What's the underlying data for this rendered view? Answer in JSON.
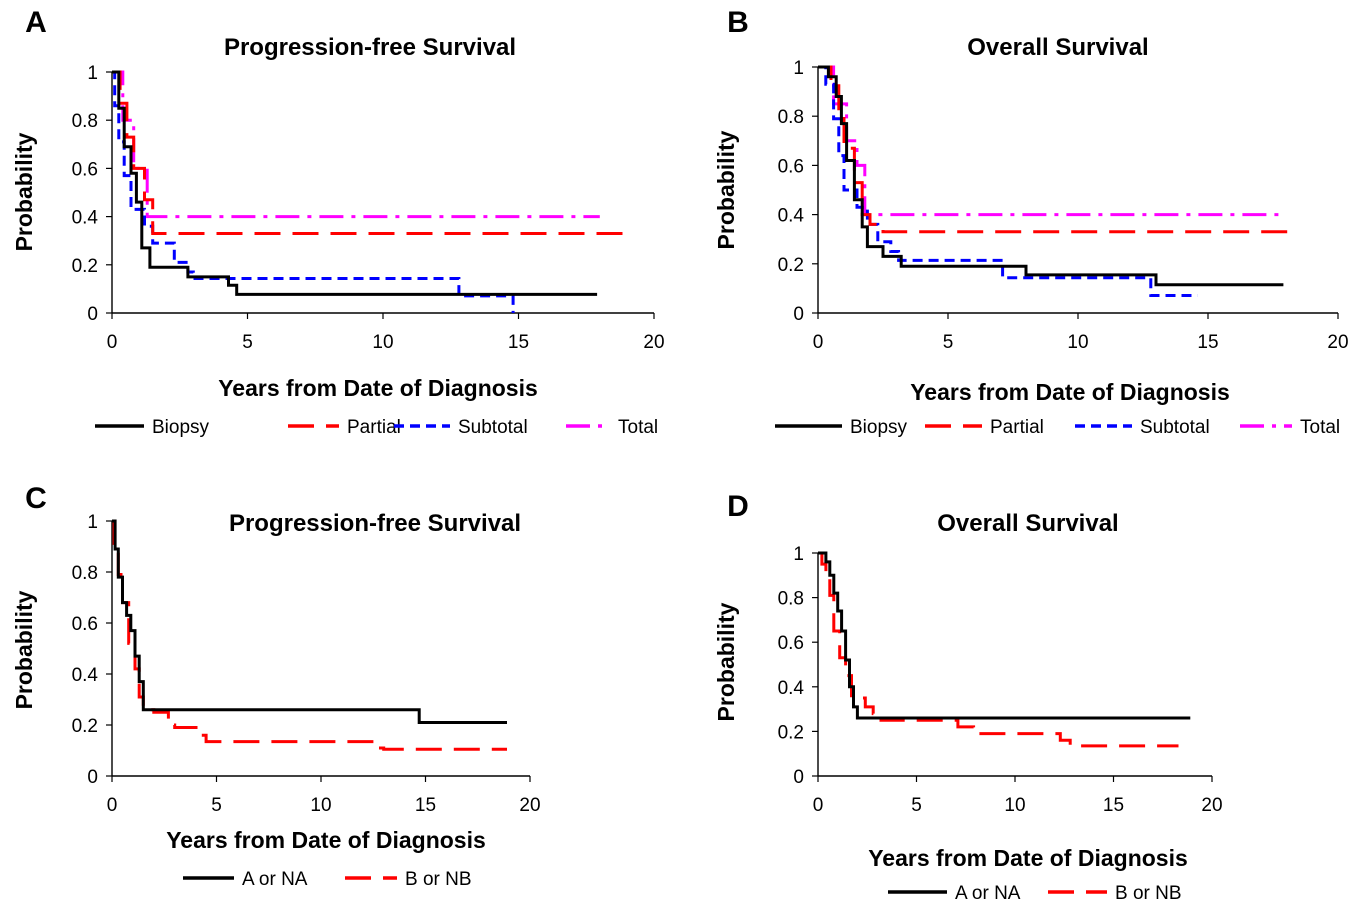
{
  "chart_data": [
    {
      "panel": "A",
      "type": "line",
      "title": "Progression-free Survival",
      "xlabel": "Years from Date of Diagnosis",
      "ylabel": "Probability",
      "xlim": [
        0,
        20
      ],
      "ylim": [
        0,
        1
      ],
      "xticks": [
        "0",
        "5",
        "10",
        "15",
        "20"
      ],
      "yticks": [
        "0",
        "0.2",
        "0.4",
        "0.6",
        "0.8",
        "1"
      ],
      "legend_position": "bottom",
      "series": [
        {
          "name": "Biopsy",
          "color": "#000000",
          "dash": "solid",
          "x": [
            0,
            0.25,
            0.25,
            0.45,
            0.45,
            0.7,
            0.7,
            0.9,
            0.9,
            1.1,
            1.1,
            1.4,
            1.4,
            2.8,
            2.8,
            4.3,
            4.3,
            4.6,
            4.6,
            17.9
          ],
          "y": [
            1,
            1,
            0.85,
            0.85,
            0.69,
            0.69,
            0.58,
            0.58,
            0.46,
            0.46,
            0.27,
            0.27,
            0.19,
            0.19,
            0.15,
            0.15,
            0.115,
            0.115,
            0.077,
            0.077
          ]
        },
        {
          "name": "Partial",
          "color": "#ff0000",
          "dash": "long-dash",
          "x": [
            0,
            0.3,
            0.3,
            0.55,
            0.55,
            0.8,
            0.8,
            1.2,
            1.2,
            1.5,
            1.5,
            19.0
          ],
          "y": [
            1,
            1,
            0.87,
            0.87,
            0.73,
            0.73,
            0.6,
            0.6,
            0.47,
            0.47,
            0.33,
            0.33
          ]
        },
        {
          "name": "Subtotal",
          "color": "#0000ff",
          "dash": "dash",
          "x": [
            0,
            0.1,
            0.1,
            0.25,
            0.25,
            0.45,
            0.45,
            0.7,
            0.7,
            1.2,
            1.2,
            1.5,
            1.5,
            2.3,
            2.3,
            2.8,
            2.8,
            3.0,
            3.0,
            12.8,
            12.8,
            14.8,
            14.8
          ],
          "y": [
            1,
            1,
            0.86,
            0.86,
            0.71,
            0.71,
            0.57,
            0.57,
            0.43,
            0.43,
            0.36,
            0.36,
            0.29,
            0.29,
            0.21,
            0.21,
            0.17,
            0.17,
            0.143,
            0.143,
            0.071,
            0.071,
            0
          ]
        },
        {
          "name": "Total",
          "color": "#ff00ff",
          "dash": "dash-dot",
          "x": [
            0,
            0.4,
            0.4,
            0.8,
            0.8,
            1.1,
            1.1,
            1.3,
            1.3,
            18.0
          ],
          "y": [
            1,
            1,
            0.8,
            0.8,
            0.6,
            0.6,
            0.6,
            0.6,
            0.4,
            0.4
          ]
        }
      ]
    },
    {
      "panel": "B",
      "type": "line",
      "title": "Overall Survival",
      "xlabel": "Years from Date of Diagnosis",
      "ylabel": "Probability",
      "xlim": [
        0,
        20
      ],
      "ylim": [
        0,
        1
      ],
      "xticks": [
        "0",
        "5",
        "10",
        "15",
        "20"
      ],
      "yticks": [
        "0",
        "0.2",
        "0.4",
        "0.6",
        "0.8",
        "1"
      ],
      "legend_position": "bottom",
      "series": [
        {
          "name": "Biopsy",
          "color": "#000000",
          "dash": "solid",
          "x": [
            0,
            0.4,
            0.4,
            0.7,
            0.7,
            0.9,
            0.9,
            1.1,
            1.1,
            1.4,
            1.4,
            1.7,
            1.7,
            1.9,
            1.9,
            2.5,
            2.5,
            3.2,
            3.2,
            8.0,
            8.0,
            13.0,
            13.0,
            17.9
          ],
          "y": [
            1,
            1,
            0.96,
            0.96,
            0.88,
            0.88,
            0.77,
            0.77,
            0.62,
            0.62,
            0.46,
            0.46,
            0.35,
            0.35,
            0.27,
            0.27,
            0.23,
            0.23,
            0.19,
            0.19,
            0.155,
            0.155,
            0.115,
            0.115
          ]
        },
        {
          "name": "Partial",
          "color": "#ff0000",
          "dash": "long-dash",
          "x": [
            0,
            0.5,
            0.5,
            0.8,
            0.8,
            1.0,
            1.0,
            1.4,
            1.4,
            1.7,
            1.7,
            2.0,
            2.0,
            2.5,
            2.5,
            18.4
          ],
          "y": [
            1,
            1,
            0.93,
            0.93,
            0.8,
            0.8,
            0.67,
            0.67,
            0.53,
            0.53,
            0.4,
            0.4,
            0.36,
            0.36,
            0.33,
            0.33
          ]
        },
        {
          "name": "Subtotal",
          "color": "#0000ff",
          "dash": "dash",
          "x": [
            0,
            0.3,
            0.3,
            0.6,
            0.6,
            0.8,
            0.8,
            1.0,
            1.0,
            1.5,
            1.5,
            1.9,
            1.9,
            2.3,
            2.3,
            2.8,
            2.8,
            3.1,
            3.1,
            7.1,
            7.1,
            12.8,
            12.8,
            14.6
          ],
          "y": [
            1,
            1,
            0.93,
            0.93,
            0.79,
            0.79,
            0.64,
            0.64,
            0.5,
            0.5,
            0.43,
            0.43,
            0.36,
            0.36,
            0.29,
            0.29,
            0.25,
            0.25,
            0.214,
            0.214,
            0.143,
            0.143,
            0.071,
            0.071
          ]
        },
        {
          "name": "Total",
          "color": "#ff00ff",
          "dash": "dash-dot",
          "x": [
            0,
            0.6,
            0.6,
            1.1,
            1.1,
            1.5,
            1.5,
            1.8,
            1.8,
            17.9
          ],
          "y": [
            1,
            1,
            0.85,
            0.85,
            0.7,
            0.7,
            0.6,
            0.6,
            0.4,
            0.4
          ]
        }
      ]
    },
    {
      "panel": "C",
      "type": "line",
      "title": "Progression-free Survival",
      "xlabel": "Years from Date of Diagnosis",
      "ylabel": "Probability",
      "xlim": [
        0,
        20
      ],
      "ylim": [
        0,
        1
      ],
      "xticks": [
        "0",
        "5",
        "10",
        "15",
        "20"
      ],
      "yticks": [
        "0",
        "0.2",
        "0.4",
        "0.6",
        "0.8",
        "1"
      ],
      "legend_position": "bottom",
      "series": [
        {
          "name": "A or NA",
          "color": "#000000",
          "dash": "solid",
          "x": [
            0,
            0.15,
            0.15,
            0.3,
            0.3,
            0.5,
            0.5,
            0.7,
            0.7,
            0.9,
            0.9,
            1.1,
            1.1,
            1.3,
            1.3,
            1.5,
            1.5,
            14.7,
            14.7,
            18.9
          ],
          "y": [
            1,
            1,
            0.89,
            0.89,
            0.78,
            0.78,
            0.68,
            0.68,
            0.63,
            0.63,
            0.57,
            0.57,
            0.47,
            0.47,
            0.37,
            0.37,
            0.26,
            0.26,
            0.21,
            0.21
          ]
        },
        {
          "name": "B or NB",
          "color": "#ff0000",
          "dash": "long-dash",
          "x": [
            0,
            0.1,
            0.1,
            0.3,
            0.3,
            0.5,
            0.5,
            0.8,
            0.8,
            1.1,
            1.1,
            1.3,
            1.3,
            1.5,
            1.5,
            2.0,
            2.0,
            2.7,
            2.7,
            3.0,
            3.0,
            4.2,
            4.2,
            4.5,
            4.5,
            12.7,
            12.7,
            13.0,
            13.0,
            18.9
          ],
          "y": [
            1,
            1,
            0.9,
            0.9,
            0.79,
            0.79,
            0.68,
            0.68,
            0.52,
            0.52,
            0.42,
            0.42,
            0.31,
            0.31,
            0.26,
            0.26,
            0.25,
            0.25,
            0.2,
            0.2,
            0.19,
            0.19,
            0.16,
            0.16,
            0.135,
            0.135,
            0.11,
            0.11,
            0.105,
            0.105
          ]
        }
      ]
    },
    {
      "panel": "D",
      "type": "line",
      "title": "Overall Survival",
      "xlabel": "Years from Date of Diagnosis",
      "ylabel": "Probability",
      "xlim": [
        0,
        20
      ],
      "ylim": [
        0,
        1
      ],
      "xticks": [
        "0",
        "5",
        "10",
        "15",
        "20"
      ],
      "yticks": [
        "0",
        "0.2",
        "0.4",
        "0.6",
        "0.8",
        "1"
      ],
      "legend_position": "bottom",
      "series": [
        {
          "name": "A or NA",
          "color": "#000000",
          "dash": "solid",
          "x": [
            0,
            0.4,
            0.4,
            0.6,
            0.6,
            0.8,
            0.8,
            1.0,
            1.0,
            1.2,
            1.2,
            1.4,
            1.4,
            1.6,
            1.6,
            1.8,
            1.8,
            2.0,
            2.0,
            18.9
          ],
          "y": [
            1,
            1,
            0.96,
            0.96,
            0.9,
            0.9,
            0.82,
            0.82,
            0.74,
            0.74,
            0.65,
            0.65,
            0.52,
            0.52,
            0.4,
            0.4,
            0.31,
            0.31,
            0.26,
            0.26
          ]
        },
        {
          "name": "B or NB",
          "color": "#ff0000",
          "dash": "long-dash",
          "x": [
            0,
            0.2,
            0.2,
            0.4,
            0.4,
            0.6,
            0.6,
            0.8,
            0.8,
            1.1,
            1.1,
            1.4,
            1.4,
            1.7,
            1.7,
            2.0,
            2.0,
            2.4,
            2.4,
            2.8,
            2.8,
            3.2,
            3.2,
            7.1,
            7.1,
            7.9,
            7.9,
            12.3,
            12.3,
            12.8,
            12.8,
            13.2,
            13.2,
            18.3
          ],
          "y": [
            1,
            1,
            0.95,
            0.95,
            0.89,
            0.89,
            0.81,
            0.81,
            0.65,
            0.65,
            0.53,
            0.53,
            0.45,
            0.45,
            0.36,
            0.36,
            0.35,
            0.35,
            0.31,
            0.31,
            0.28,
            0.28,
            0.25,
            0.25,
            0.22,
            0.22,
            0.19,
            0.19,
            0.16,
            0.16,
            0.135,
            0.135,
            0.135,
            0.135
          ]
        }
      ]
    }
  ]
}
